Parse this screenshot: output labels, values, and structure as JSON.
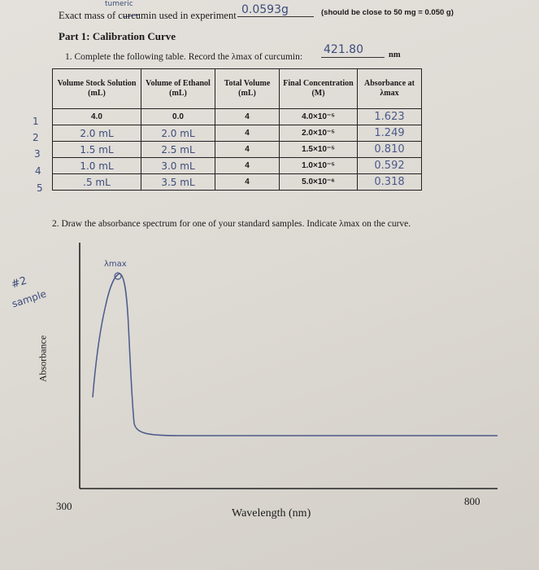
{
  "header": {
    "mass_label": "Exact mass of curcumin used in experiment",
    "mass_value": "0.0593g",
    "mass_correction": "tumeric",
    "mass_note": "(should be close to 50 mg = 0.050 g)"
  },
  "part1": {
    "title": "Part 1: Calibration Curve",
    "instruction": "1. Complete the following table. Record the λmax of curcumin:",
    "lambda_max_value": "421.80",
    "lambda_unit": "nm"
  },
  "table": {
    "headers": [
      "Volume Stock Solution (mL)",
      "Volume of Ethanol (mL)",
      "Total Volume (mL)",
      "Final Concentration (M)",
      "Absorbance at λmax"
    ],
    "row_numbers": [
      "1",
      "2",
      "3",
      "4",
      "5"
    ],
    "rows": [
      [
        "4.0",
        "0.0",
        "4",
        "4.0×10⁻⁵",
        "1.623"
      ],
      [
        "2.0 mL",
        "2.0 mL",
        "4",
        "2.0×10⁻⁵",
        "1.249"
      ],
      [
        "1.5 mL",
        "2.5 mL",
        "4",
        "1.5×10⁻⁵",
        "0.810"
      ],
      [
        "1.0 mL",
        "3.0 mL",
        "4",
        "1.0×10⁻⁵",
        "0.592"
      ],
      [
        ".5 mL",
        "3.5 mL",
        "4",
        "5.0×10⁻⁶",
        "0.318"
      ]
    ]
  },
  "part2": {
    "instruction": "2. Draw the absorbance spectrum for one of your standard samples. Indicate λmax on the curve.",
    "sample_note_line1": "#2",
    "sample_note_line2": "sample",
    "y_axis_label": "Absorbance",
    "x_axis_label": "Wavelength (nm)",
    "x_min_label": "300",
    "x_max_label": "800",
    "peak_label": "λmax"
  },
  "colors": {
    "ink": "#3c4c7a",
    "paper": "#e0ddd8"
  }
}
